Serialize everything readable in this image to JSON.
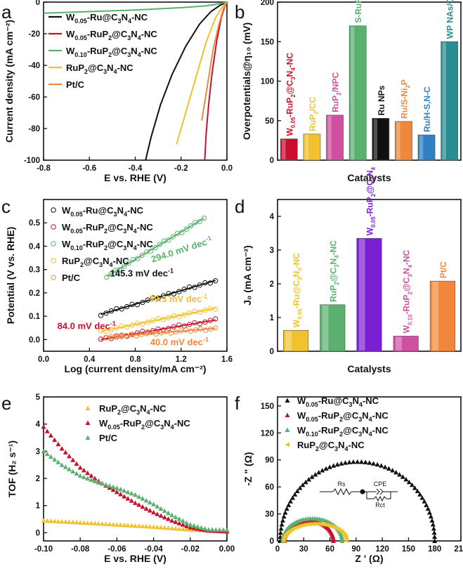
{
  "colors": {
    "black": "#111111",
    "red": "#c8102e",
    "green": "#5ab06e",
    "yellow": "#f2c12e",
    "orange": "#f0873a",
    "blue": "#2f7fc1",
    "teal": "#2a8c93",
    "purple": "#7a1fd1",
    "pink": "#cf4fa0",
    "gray": "#a8a8a8"
  },
  "chart_data": [
    {
      "panel": "a",
      "type": "line",
      "xlabel": "E vs. RHE (V)",
      "ylabel": "Current density (mA cm⁻²)",
      "xlim": [
        -0.8,
        0.0
      ],
      "ylim": [
        -100,
        0
      ],
      "xticks": [
        "-0.8",
        "-0.6",
        "-0.4",
        "-0.2",
        "0.0"
      ],
      "yticks": [
        "0",
        "-20",
        "-40",
        "-60",
        "-80",
        "-100"
      ],
      "series": [
        {
          "name": "W0.05-Ru@C3N4-NC",
          "label": {
            "p": "W",
            "s": "0.05",
            "t": "-Ru@C",
            "s2": "3",
            "t2": "N",
            "s3": "4",
            "t3": "-NC"
          },
          "color": "#111111",
          "points": [
            [
              0,
              0
            ],
            [
              -0.03,
              -2
            ],
            [
              -0.07,
              -6
            ],
            [
              -0.12,
              -14
            ],
            [
              -0.18,
              -28
            ],
            [
              -0.24,
              -46
            ],
            [
              -0.29,
              -65
            ],
            [
              -0.33,
              -85
            ],
            [
              -0.355,
              -100
            ]
          ]
        },
        {
          "name": "W0.05-RuP2@C3N4-NC",
          "label": {
            "p": "W",
            "s": "0.05",
            "t": "-RuP",
            "s2": "2",
            "t2": "@C",
            "s3": "3",
            "t3": "N",
            "s4": "4",
            "t4": "-NC"
          },
          "color": "#c8102e",
          "points": [
            [
              0,
              0
            ],
            [
              -0.01,
              -3
            ],
            [
              -0.025,
              -10
            ],
            [
              -0.045,
              -25
            ],
            [
              -0.065,
              -45
            ],
            [
              -0.08,
              -65
            ],
            [
              -0.09,
              -82
            ],
            [
              -0.097,
              -100
            ]
          ]
        },
        {
          "name": "W0.10-RuP2@C3N4-NC",
          "label": {
            "p": "W",
            "s": "0.10",
            "t": "-RuP",
            "s2": "2",
            "t2": "@C",
            "s3": "3",
            "t3": "N",
            "s4": "4",
            "t4": "-NC"
          },
          "color": "#5ab06e",
          "points": [
            [
              -0.8,
              -7
            ],
            [
              -0.6,
              -6
            ],
            [
              -0.4,
              -5
            ],
            [
              -0.2,
              -3.5
            ],
            [
              -0.1,
              -2.5
            ],
            [
              -0.05,
              -1.5
            ],
            [
              0,
              0
            ]
          ]
        },
        {
          "name": "RuP2@C3N4-NC",
          "label": {
            "p": "RuP",
            "s": "2",
            "t": "@C",
            "s2": "3",
            "t2": "N",
            "s3": "4",
            "t3": "-NC"
          },
          "color": "#f2c12e",
          "points": [
            [
              0,
              0
            ],
            [
              -0.02,
              -3
            ],
            [
              -0.05,
              -10
            ],
            [
              -0.09,
              -25
            ],
            [
              -0.13,
              -45
            ],
            [
              -0.17,
              -65
            ],
            [
              -0.2,
              -80
            ],
            [
              -0.22,
              -90
            ]
          ]
        },
        {
          "name": "Pt/C",
          "label": {
            "p": "Pt/C"
          },
          "color": "#f0873a",
          "points": [
            [
              0,
              0
            ],
            [
              -0.015,
              -4
            ],
            [
              -0.035,
              -14
            ],
            [
              -0.06,
              -30
            ],
            [
              -0.08,
              -48
            ],
            [
              -0.1,
              -66
            ],
            [
              -0.11,
              -75
            ]
          ]
        }
      ]
    },
    {
      "panel": "b",
      "type": "bar",
      "xlabel": "Catalysts",
      "ylabel": "Overpotentials@η₁₀ (mV)",
      "ylim": [
        0,
        200
      ],
      "yticks": [
        "0",
        "50",
        "100",
        "150",
        "200"
      ],
      "bars": [
        {
          "name": "W0.05-RuP2@C3N4-NC",
          "value": 27,
          "color": "#c8102e",
          "label": {
            "p": "W",
            "s": "0.05",
            "t": "-RuP",
            "s2": "2",
            "t2": "@C",
            "s3": "3",
            "t3": "N",
            "s4": "4",
            "t4": "-NC"
          }
        },
        {
          "name": "RuP2/CC",
          "value": 33,
          "color": "#f2c12e",
          "label": {
            "p": "RuP",
            "s": "2",
            "t": "/CC"
          }
        },
        {
          "name": "RuP2/NPC",
          "value": 57,
          "color": "#cf4fa0",
          "label": {
            "p": "RuP",
            "s": "2",
            "t": "/NPC"
          }
        },
        {
          "name": "S-RuP@NPSC-1000",
          "value": 170,
          "color": "#5ab06e",
          "label": {
            "p": "S-RuP@NPSC-1000"
          }
        },
        {
          "name": "Ru NPs",
          "value": 53,
          "color": "#111111",
          "label": {
            "p": "Ru NPs"
          }
        },
        {
          "name": "Ru/S-Ni2P",
          "value": 49,
          "color": "#f0873a",
          "label": {
            "p": "Ru/S-Ni",
            "s": "2",
            "t": "P"
          }
        },
        {
          "name": "Ru/H-S,N-C",
          "value": 32,
          "color": "#2f7fc1",
          "label": {
            "p": "Ru/H-S,N-C"
          }
        },
        {
          "name": "WP NAs/CC",
          "value": 150,
          "color": "#2a8c93",
          "label": {
            "p": "WP NAs/CC"
          }
        }
      ]
    },
    {
      "panel": "c",
      "type": "scatter",
      "xlabel": "Log (current density/mA cm⁻²)",
      "ylabel": "Potential (V vs. RHE)",
      "xlim": [
        0.0,
        1.6
      ],
      "ylim": [
        -0.05,
        0.6
      ],
      "xticks": [
        "0.0",
        "0.4",
        "0.8",
        "1.2",
        "1.6"
      ],
      "yticks": [
        "0.0",
        "0.1",
        "0.2",
        "0.3",
        "0.4",
        "0.5"
      ],
      "legend": [
        {
          "color": "#111111",
          "label": {
            "p": "W",
            "s": "0.05",
            "t": "-Ru@C",
            "s2": "3",
            "t2": "N",
            "s3": "4",
            "t3": "-NC"
          }
        },
        {
          "color": "#c8102e",
          "label": {
            "p": "W",
            "s": "0.05",
            "t": "-RuP",
            "s2": "2",
            "t2": "@C",
            "s3": "3",
            "t3": "N",
            "s4": "4",
            "t4": "-NC"
          }
        },
        {
          "color": "#5ab06e",
          "label": {
            "p": "W",
            "s": "0.10",
            "t": "-RuP",
            "s2": "2",
            "t2": "@C",
            "s3": "3",
            "t3": "N",
            "s4": "4",
            "t4": "-NC"
          }
        },
        {
          "color": "#f2c12e",
          "label": {
            "p": "RuP",
            "s": "2",
            "t": "@C",
            "s2": "3",
            "t2": "N",
            "s3": "4",
            "t3": "-NC"
          }
        },
        {
          "color": "#f0873a",
          "label": {
            "p": "Pt/C"
          }
        }
      ],
      "series": [
        {
          "name": "W0.05-Ru@C3N4-NC",
          "color": "#111111",
          "x0": 0.5,
          "x1": 1.5,
          "y0": 0.108,
          "slope": 0.1453
        },
        {
          "name": "W0.05-RuP2@C3N4-NC",
          "color": "#c8102e",
          "x0": 0.5,
          "x1": 1.5,
          "y0": 0.0,
          "slope": 0.084
        },
        {
          "name": "W0.10-RuP2@C3N4-NC",
          "color": "#5ab06e",
          "x0": 0.55,
          "x1": 1.4,
          "y0": 0.27,
          "slope": 0.294
        },
        {
          "name": "RuP2@C3N4-NC",
          "color": "#f2c12e",
          "x0": 0.5,
          "x1": 1.5,
          "y0": 0.035,
          "slope": 0.0993
        },
        {
          "name": "Pt/C",
          "color": "#f0873a",
          "x0": 0.55,
          "x1": 1.5,
          "y0": 0.01,
          "slope": 0.04
        }
      ],
      "annotations": [
        {
          "main": "294.0 mV dec",
          "sup": "-1",
          "color": "#5ab06e",
          "x": 0.95,
          "y": 0.33,
          "rotate": -18
        },
        {
          "main": "145.3 mV dec",
          "sup": "-1",
          "color": "#111111",
          "x": 0.58,
          "y": 0.27,
          "rotate": 0
        },
        {
          "main": "99.3 mV dec",
          "sup": "-1",
          "color": "#f2c12e",
          "x": 0.92,
          "y": 0.16,
          "rotate": 0
        },
        {
          "main": "84.0 mV dec",
          "sup": "-1",
          "color": "#c8102e",
          "x": 0.12,
          "y": 0.045,
          "rotate": 0
        },
        {
          "main": "40.0 mV dec",
          "sup": "-1",
          "color": "#f0873a",
          "x": 0.93,
          "y": -0.025,
          "rotate": 0
        }
      ]
    },
    {
      "panel": "d",
      "type": "bar",
      "xlabel": "Catalysts",
      "ylabel": "J₀ (mA cm⁻²)",
      "ylim": [
        0,
        4.5
      ],
      "yticks": [
        "0",
        "1",
        "2",
        "3",
        "4"
      ],
      "bars": [
        {
          "name": "W0.05-Ru@C3N4-NC",
          "value": 0.62,
          "color": "#f2c12e",
          "label": {
            "p": "W",
            "s": "0.05",
            "t": "-Ru@C",
            "s2": "3",
            "t2": "N",
            "s3": "4",
            "t3": "-NC"
          }
        },
        {
          "name": "RuP2@C3N4-NC",
          "value": 1.38,
          "color": "#5ab06e",
          "label": {
            "p": "RuP",
            "s": "2",
            "t": "@C",
            "s2": "3",
            "t2": "N",
            "s3": "4",
            "t3": "-NC"
          }
        },
        {
          "name": "W0.05-RuP2@C3N4-NC",
          "value": 3.35,
          "color": "#7a1fd1",
          "label": {
            "p": "W",
            "s": "0.05",
            "t": "-RuP",
            "s2": "2",
            "t2": "@C",
            "s3": "3",
            "t3": "N",
            "s4": "4"
          }
        },
        {
          "name": "W0.10-RuP2@C3N4-NC",
          "value": 0.45,
          "color": "#cf4fa0",
          "label": {
            "p": "W",
            "s": "0.10",
            "t": "-RuP",
            "s2": "2",
            "t2": "@C",
            "s3": "3",
            "t3": "N",
            "s4": "4",
            "t4": "-NC"
          }
        },
        {
          "name": "Pt/C",
          "value": 2.08,
          "color": "#f0873a",
          "label": {
            "p": "Pt/C"
          }
        }
      ]
    },
    {
      "panel": "e",
      "type": "scatter",
      "xlabel": "E vs. RHE (V)",
      "ylabel": "TOF (H₂ s⁻¹)",
      "xlim": [
        -0.1,
        0.0
      ],
      "ylim": [
        -0.3,
        5
      ],
      "xticks": [
        "-0.10",
        "-0.08",
        "-0.06",
        "-0.04",
        "-0.02",
        "0.00"
      ],
      "yticks": [
        "0",
        "1",
        "2",
        "3",
        "4",
        "5"
      ],
      "series": [
        {
          "name": "RuP2@C3N4-NC",
          "color": "#f2c12e",
          "label": {
            "p": "RuP",
            "s": "2",
            "t": "@C",
            "s2": "3",
            "t2": "N",
            "s3": "4",
            "t3": "-NC"
          },
          "points": [
            [
              -0.1,
              0.45
            ],
            [
              -0.08,
              0.38
            ],
            [
              -0.06,
              0.3
            ],
            [
              -0.04,
              0.22
            ],
            [
              -0.02,
              0.12
            ],
            [
              0,
              0.05
            ]
          ]
        },
        {
          "name": "W0.05-RuP2@C3N4-NC",
          "color": "#c8102e",
          "label": {
            "p": "W",
            "s": "0.05",
            "t": "-RuP",
            "s2": "2",
            "t2": "@C",
            "s3": "3",
            "t3": "N",
            "s4": "4",
            "t4": "-NC"
          },
          "points": [
            [
              -0.1,
              3.9
            ],
            [
              -0.09,
              3.1
            ],
            [
              -0.08,
              2.4
            ],
            [
              -0.07,
              1.9
            ],
            [
              -0.06,
              1.5
            ],
            [
              -0.05,
              1.1
            ],
            [
              -0.04,
              0.75
            ],
            [
              -0.03,
              0.45
            ],
            [
              -0.02,
              0.2
            ],
            [
              -0.01,
              0.08
            ],
            [
              0,
              0.05
            ]
          ]
        },
        {
          "name": "Pt/C",
          "color": "#5ab06e",
          "label": {
            "p": "Pt/C"
          },
          "points": [
            [
              -0.1,
              3.0
            ],
            [
              -0.09,
              2.5
            ],
            [
              -0.08,
              2.1
            ],
            [
              -0.07,
              1.85
            ],
            [
              -0.06,
              1.65
            ],
            [
              -0.05,
              1.4
            ],
            [
              -0.04,
              1.05
            ],
            [
              -0.03,
              0.65
            ],
            [
              -0.02,
              0.3
            ],
            [
              -0.01,
              0.12
            ],
            [
              0,
              0.1
            ]
          ]
        }
      ]
    },
    {
      "panel": "f",
      "type": "scatter",
      "xlabel": "Z ' (Ω)",
      "ylabel": "-Z \" (Ω)",
      "xlim": [
        0,
        210
      ],
      "ylim": [
        0,
        160
      ],
      "xticks": [
        "0",
        "30",
        "60",
        "90",
        "120",
        "150",
        "180",
        "210"
      ],
      "yticks": [
        "0",
        "30",
        "60",
        "90",
        "120",
        "150"
      ],
      "series": [
        {
          "name": "W0.05-Ru@C3N4-NC",
          "color": "#111111",
          "marker": "up",
          "cx": 91.5,
          "r": 88.5,
          "h": 88,
          "label": {
            "p": "W",
            "s": "0.05",
            "t": "-Ru@C",
            "s2": "3",
            "t2": "N",
            "s3": "4",
            "t3": "-NC"
          }
        },
        {
          "name": "W0.05-RuP2@C3N4-NC",
          "color": "#c8102e",
          "marker": "up",
          "cx": 36,
          "r": 28,
          "h": 22,
          "label": {
            "p": "W",
            "s": "0.05",
            "t": "-RuP",
            "s2": "2",
            "t2": "@C",
            "s3": "3",
            "t3": "N",
            "s4": "4",
            "t4": "-NC"
          }
        },
        {
          "name": "W0.10-RuP2@C3N4-NC",
          "color": "#5ab06e",
          "marker": "up",
          "cx": 40,
          "r": 34,
          "h": 25,
          "label": {
            "p": "W",
            "s": "0.10",
            "t": "-RuP",
            "s2": "2",
            "t2": "@C",
            "s3": "3",
            "t3": "N",
            "s4": "4",
            "t4": "-NC"
          }
        },
        {
          "name": "RuP2@C3N4-NC",
          "color": "#f2c12e",
          "marker": "left",
          "cx": 43,
          "r": 36,
          "h": 19,
          "label": {
            "p": "RuP",
            "s": "2",
            "t": "@C",
            "s2": "3",
            "t2": "N",
            "s3": "4",
            "t3": "-NC"
          }
        }
      ],
      "circuit": {
        "rs": "Rs",
        "cpe": "CPE",
        "rct": "Rct"
      }
    }
  ],
  "panel_letters": [
    "a",
    "b",
    "c",
    "d",
    "e",
    "f"
  ]
}
